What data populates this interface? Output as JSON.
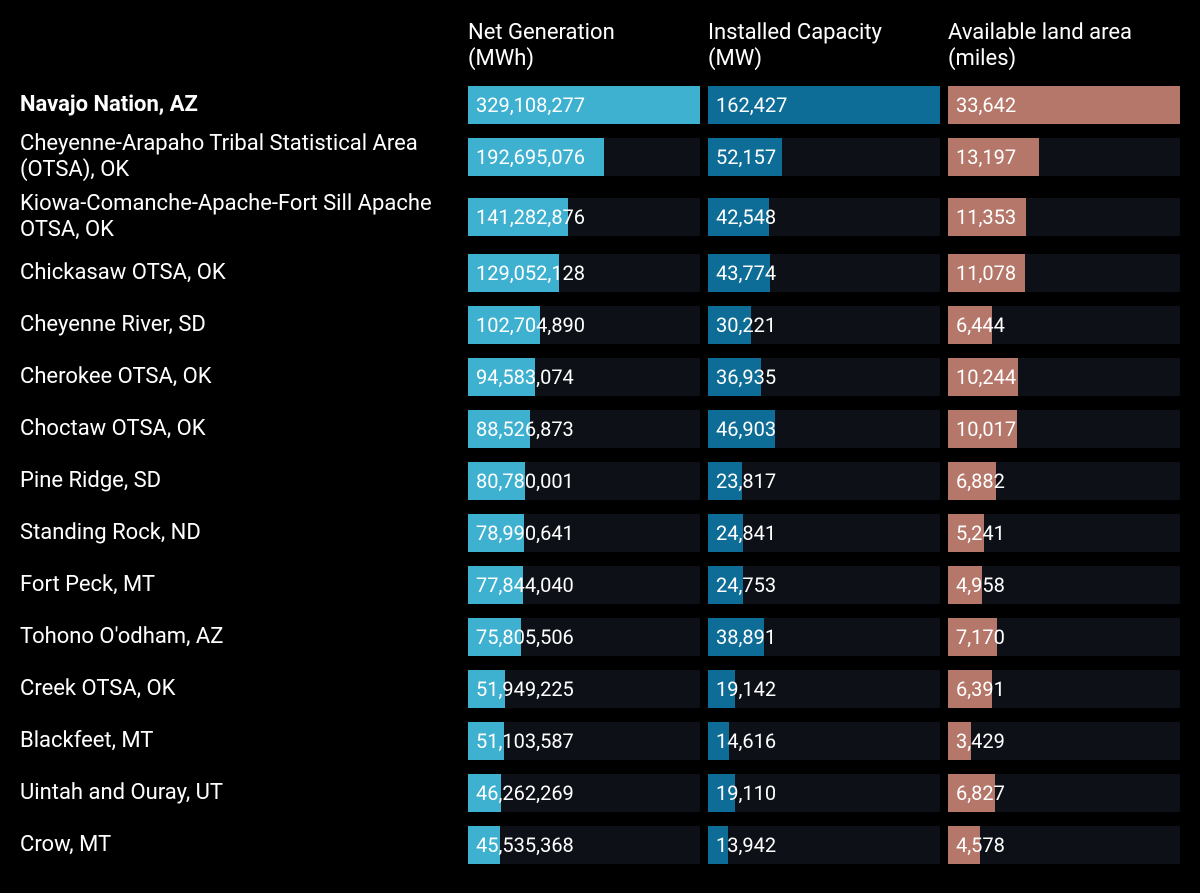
{
  "columns": [
    {
      "key": "gen",
      "label": "Net Generation\n(MWh)",
      "color": "#3eb1d1",
      "bg": "#0d1117",
      "max": 329108277
    },
    {
      "key": "cap",
      "label": "Installed Capacity\n(MW)",
      "color": "#0e6d96",
      "bg": "#0d1117",
      "max": 162427
    },
    {
      "key": "land",
      "label": "Available land area\n(miles)",
      "color": "#b5776a",
      "bg": "#0d1117",
      "max": 33642
    }
  ],
  "rows": [
    {
      "label": "Navajo Nation, AZ",
      "bold": true,
      "tall": false,
      "first": true,
      "gen": {
        "value": 329108277,
        "text": "329,108,277"
      },
      "cap": {
        "value": 162427,
        "text": "162,427"
      },
      "land": {
        "value": 33642,
        "text": "33,642"
      }
    },
    {
      "label": "Cheyenne-Arapaho Tribal Statistical Area (OTSA), OK",
      "bold": false,
      "tall": true,
      "gen": {
        "value": 192695076,
        "text": "192,695,076"
      },
      "cap": {
        "value": 52100,
        "text": "52,157"
      },
      "land": {
        "value": 13200,
        "text": "13,197"
      }
    },
    {
      "label": "Kiowa-Comanche-Apache-Fort Sill Apache OTSA, OK",
      "bold": false,
      "tall": true,
      "gen": {
        "value": 141282876,
        "text": "141,282,876"
      },
      "cap": {
        "value": 42500,
        "text": "42,548"
      },
      "land": {
        "value": 11350,
        "text": "11,353"
      }
    },
    {
      "label": "Chickasaw OTSA, OK",
      "bold": false,
      "gen": {
        "value": 129052128,
        "text": "129,052,128"
      },
      "cap": {
        "value": 43700,
        "text": "43,774"
      },
      "land": {
        "value": 11100,
        "text": "11,078"
      }
    },
    {
      "label": "Cheyenne River, SD",
      "bold": false,
      "gen": {
        "value": 102704890,
        "text": "102,704,890"
      },
      "cap": {
        "value": 30200,
        "text": "30,221"
      },
      "land": {
        "value": 6400,
        "text": "6,444"
      }
    },
    {
      "label": "Cherokee OTSA, OK",
      "bold": false,
      "gen": {
        "value": 94583000,
        "text": "94,583,074"
      },
      "cap": {
        "value": 36900,
        "text": "36,935"
      },
      "land": {
        "value": 10200,
        "text": "10,244"
      }
    },
    {
      "label": "Choctaw OTSA, OK",
      "bold": false,
      "gen": {
        "value": 88500000,
        "text": "88,526,873"
      },
      "cap": {
        "value": 46900,
        "text": "46,903"
      },
      "land": {
        "value": 10000,
        "text": "10,017"
      }
    },
    {
      "label": "Pine Ridge, SD",
      "bold": false,
      "gen": {
        "value": 80780000,
        "text": "80,780,001"
      },
      "cap": {
        "value": 23800,
        "text": "23,817"
      },
      "land": {
        "value": 6900,
        "text": "6,882"
      }
    },
    {
      "label": "Standing Rock, ND",
      "bold": false,
      "gen": {
        "value": 78990000,
        "text": "78,990,641"
      },
      "cap": {
        "value": 24800,
        "text": "24,841"
      },
      "land": {
        "value": 5240,
        "text": "5,241"
      }
    },
    {
      "label": "Fort Peck, MT",
      "bold": false,
      "gen": {
        "value": 77840000,
        "text": "77,844,040"
      },
      "cap": {
        "value": 24700,
        "text": "24,753"
      },
      "land": {
        "value": 4960,
        "text": "4,958"
      }
    },
    {
      "label": "Tohono O'odham, AZ",
      "bold": false,
      "gen": {
        "value": 75800000,
        "text": "75,805,506"
      },
      "cap": {
        "value": 38900,
        "text": "38,891"
      },
      "land": {
        "value": 7170,
        "text": "7,170"
      }
    },
    {
      "label": "Creek OTSA, OK",
      "bold": false,
      "gen": {
        "value": 51950000,
        "text": "51,949,225"
      },
      "cap": {
        "value": 19100,
        "text": "19,142"
      },
      "land": {
        "value": 6400,
        "text": "6,391"
      }
    },
    {
      "label": "Blackfeet, MT",
      "bold": false,
      "gen": {
        "value": 51100000,
        "text": "51,103,587"
      },
      "cap": {
        "value": 14600,
        "text": "14,616"
      },
      "land": {
        "value": 3400,
        "text": "3,429"
      }
    },
    {
      "label": "Uintah and Ouray, UT",
      "bold": false,
      "gen": {
        "value": 46200000,
        "text": "46,262,269"
      },
      "cap": {
        "value": 19100,
        "text": "19,110"
      },
      "land": {
        "value": 6800,
        "text": "6,827"
      }
    },
    {
      "label": "Crow, MT",
      "bold": false,
      "gen": {
        "value": 45500000,
        "text": "45,535,368"
      },
      "cap": {
        "value": 13900,
        "text": "13,942"
      },
      "land": {
        "value": 4600,
        "text": "4,578"
      }
    }
  ],
  "style": {
    "background": "#000000",
    "text_color": "#ffffff",
    "label_fontsize": 22,
    "value_fontsize": 20,
    "header_fontsize": 22
  }
}
